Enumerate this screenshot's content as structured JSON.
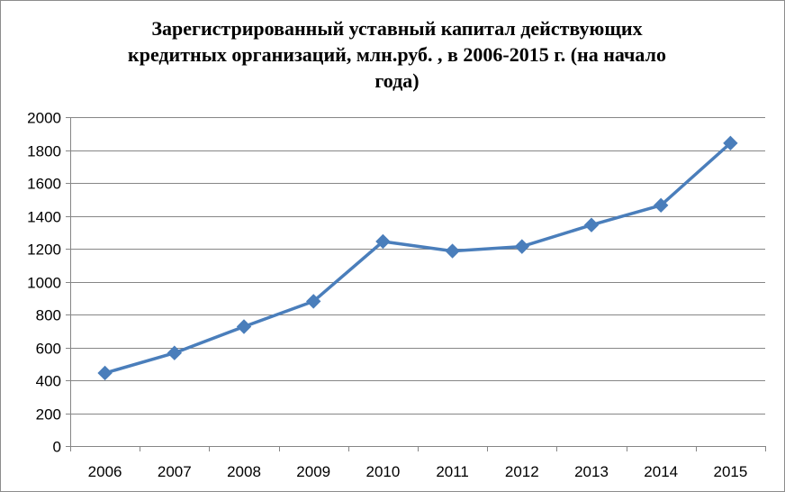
{
  "chart_data": {
    "type": "line",
    "title": "Зарегистрированный уставный капитал действующих\nкредитных организаций, млн.руб. , в 2006-2015 г. (на начало\nгода)",
    "xlabel": "",
    "ylabel": "",
    "categories": [
      "2006",
      "2007",
      "2008",
      "2009",
      "2010",
      "2011",
      "2012",
      "2013",
      "2014",
      "2015"
    ],
    "series": [
      {
        "values": [
          444,
          566,
          726,
          880,
          1244,
          1186,
          1213,
          1344,
          1464,
          1842
        ]
      }
    ],
    "ylim": [
      0,
      2000
    ],
    "yticks": [
      0,
      200,
      400,
      600,
      800,
      1000,
      1200,
      1400,
      1600,
      1800,
      2000
    ],
    "grid": true,
    "legend": "none",
    "series_color": "#4a7ebb",
    "grid_color": "#868686"
  }
}
